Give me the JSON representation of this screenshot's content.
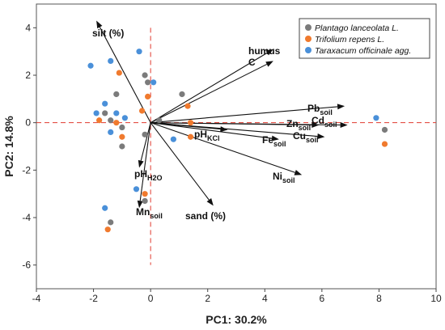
{
  "chart_data": {
    "type": "scatter",
    "title": "",
    "xlabel": "PC1: 30.2%",
    "ylabel": "PC2: 14.8%",
    "xlim": [
      -4,
      10
    ],
    "ylim": [
      -7,
      5
    ],
    "x_ticks": [
      -4,
      -2,
      0,
      2,
      4,
      6,
      8,
      10
    ],
    "y_ticks": [
      -6,
      -4,
      -2,
      0,
      2,
      4
    ],
    "grid": false,
    "legend_position": "top-right",
    "reference_lines": {
      "x": 0,
      "y": 0,
      "color": "#e03a2f",
      "style": "dashed"
    },
    "series": [
      {
        "name": "Plantago lanceolata L.",
        "color": "#7b7b7b",
        "points": [
          [
            -1.2,
            1.2
          ],
          [
            -0.2,
            2.0
          ],
          [
            -0.1,
            1.7
          ],
          [
            -1.4,
            0.1
          ],
          [
            -1.0,
            -0.2
          ],
          [
            -1.6,
            0.4
          ],
          [
            -1.0,
            -1.0
          ],
          [
            0.3,
            0.1
          ],
          [
            1.1,
            1.2
          ],
          [
            -0.2,
            -0.5
          ],
          [
            -0.2,
            -3.3
          ],
          [
            -1.4,
            -4.2
          ],
          [
            8.2,
            -0.3
          ]
        ]
      },
      {
        "name": "Trifolium repens L.",
        "color": "#f07a2e",
        "points": [
          [
            -1.1,
            2.1
          ],
          [
            -0.1,
            1.1
          ],
          [
            -0.3,
            0.5
          ],
          [
            -1.2,
            0.0
          ],
          [
            -1.8,
            0.1
          ],
          [
            -1.0,
            -0.6
          ],
          [
            1.3,
            0.7
          ],
          [
            1.4,
            0.0
          ],
          [
            1.4,
            -0.6
          ],
          [
            -0.2,
            -3.0
          ],
          [
            -1.5,
            -4.5
          ],
          [
            8.2,
            -0.9
          ]
        ]
      },
      {
        "name": "Taraxacum officinale agg.",
        "color": "#4a90d9",
        "points": [
          [
            -2.1,
            2.4
          ],
          [
            -1.4,
            2.6
          ],
          [
            -0.4,
            3.0
          ],
          [
            0.1,
            1.7
          ],
          [
            -1.9,
            0.4
          ],
          [
            -1.2,
            0.4
          ],
          [
            -1.4,
            -0.4
          ],
          [
            -1.6,
            0.8
          ],
          [
            -0.9,
            0.2
          ],
          [
            0.8,
            -0.7
          ],
          [
            -0.5,
            -2.8
          ],
          [
            -1.6,
            -3.6
          ],
          [
            7.9,
            0.2
          ]
        ]
      }
    ],
    "vectors": [
      {
        "label": "silt (%)",
        "end": [
          -1.9,
          4.3
        ]
      },
      {
        "label": "humus",
        "end": [
          4.3,
          3.1
        ]
      },
      {
        "label": "C",
        "end": [
          4.3,
          2.6
        ]
      },
      {
        "label": "Pbsoil",
        "end": [
          6.8,
          0.7
        ]
      },
      {
        "label": "Znsoil",
        "end": [
          5.9,
          -0.1
        ]
      },
      {
        "label": "Cdsoil",
        "end": [
          6.9,
          -0.1
        ]
      },
      {
        "label": "Cusoil",
        "end": [
          6.1,
          -0.6
        ]
      },
      {
        "label": "Fesoil",
        "end": [
          4.5,
          -0.7
        ]
      },
      {
        "label": "pHKCl",
        "end": [
          2.7,
          -0.3
        ]
      },
      {
        "label": "Nisoil",
        "end": [
          5.3,
          -2.2
        ]
      },
      {
        "label": "pHH2O",
        "end": [
          -0.4,
          -1.9
        ]
      },
      {
        "label": "Mnsoil",
        "end": [
          -0.4,
          -3.6
        ]
      },
      {
        "label": "sand (%)",
        "end": [
          2.2,
          -3.5
        ]
      }
    ]
  },
  "legend": {
    "items": [
      {
        "label": "Plantago lanceolata L.",
        "color": "#7b7b7b"
      },
      {
        "label": "Trifolium repens L.",
        "color": "#f07a2e"
      },
      {
        "label": "Taraxacum officinale agg.",
        "color": "#4a90d9"
      }
    ]
  },
  "vector_labels": {
    "silt": {
      "main": "silt (%)"
    },
    "humus": {
      "main": "humus"
    },
    "c": {
      "main": "C"
    },
    "pb": {
      "main": "Pb",
      "sub": "soil"
    },
    "zn": {
      "main": "Zn",
      "sub": "soil"
    },
    "cd": {
      "main": "Cd",
      "sub": "soil"
    },
    "cu": {
      "main": "Cu",
      "sub": "soil"
    },
    "fe": {
      "main": "Fe",
      "sub": "soil"
    },
    "phkcl": {
      "main": "pH",
      "sub": "KCl"
    },
    "ni": {
      "main": "Ni",
      "sub": "soil"
    },
    "phh2o": {
      "main": "pH",
      "sub": "H2O"
    },
    "mn": {
      "main": "Mn",
      "sub": "soil"
    },
    "sand": {
      "main": "sand (%)"
    }
  }
}
